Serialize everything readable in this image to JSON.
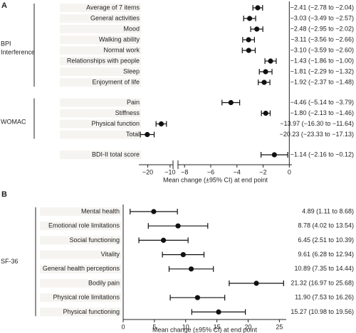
{
  "chart_data": [
    {
      "type": "forest",
      "panel_label": "A",
      "x_label": "Mean change (±95% CI) at end point",
      "xlim": [
        -24,
        0.2
      ],
      "x_break": [
        -8.7,
        -8.5
      ],
      "xticks": [
        {
          "value": -20,
          "label": "−20"
        },
        {
          "value": -10,
          "label": "−10"
        },
        {
          "value": -8,
          "label": "−8"
        },
        {
          "value": -6,
          "label": "−6"
        },
        {
          "value": -4,
          "label": "−4"
        },
        {
          "value": -2,
          "label": "−2"
        },
        0
      ],
      "groups": [
        {
          "name": "BPI\nInterference",
          "categories": [
            "Average of 7 items",
            "General activities",
            "Mood",
            "Walking ability",
            "Normal work",
            "Relationships with people",
            "Sleep",
            "Enjoyment of life"
          ],
          "values": [
            -2.41,
            -3.03,
            -2.48,
            -3.11,
            -3.1,
            -1.43,
            -1.81,
            -1.92
          ],
          "lower": [
            -2.78,
            -3.49,
            -2.95,
            -3.56,
            -3.59,
            -1.86,
            -2.29,
            -2.37
          ],
          "upper": [
            -2.04,
            -2.57,
            -2.02,
            -2.66,
            -2.6,
            -1.0,
            -1.32,
            -1.48
          ],
          "value_labels": [
            "−2.41 (−2.78 to −2.04)",
            "−3.03 (−3.49 to −2.57)",
            "−2.48 (−2.95 to −2.02)",
            "−3.11 (−3.56 to −2.66)",
            "−3.10 (−3.59 to −2.60)",
            "−1.43 (−1.86 to −1.00)",
            "−1.81 (−2.29 to −1.32)",
            "−1.92 (−2.37 to −1.48)"
          ]
        },
        {
          "name": "WOMAC",
          "categories": [
            "Pain",
            "Stiffness",
            "Physical function",
            "Total"
          ],
          "values": [
            -4.46,
            -1.8,
            -13.97,
            -20.23
          ],
          "lower": [
            -5.14,
            -2.13,
            -16.3,
            -23.33
          ],
          "upper": [
            -3.79,
            -1.46,
            -11.64,
            -17.13
          ],
          "value_labels": [
            "−4.46 (−5.14 to −3.79)",
            "−1.80 (−2.13 to −1.46)",
            "−13.97 (−16.30 to −11.64)",
            "−20.23 (−23.33 to −17.13)"
          ]
        },
        {
          "categories": [
            "BDI-II total score"
          ],
          "values": [
            -1.14
          ],
          "lower": [
            -2.16
          ],
          "upper": [
            -0.12
          ],
          "value_labels": [
            "−1.14 (−2.16 to −0.12)"
          ]
        }
      ]
    },
    {
      "type": "forest",
      "panel_label": "B",
      "x_label": "Mean change (±95% CI) at end point",
      "xlim": [
        0,
        26.1
      ],
      "xticks": [
        0,
        5,
        10,
        15,
        20,
        25
      ],
      "groups": [
        {
          "name": "SF-36",
          "categories": [
            "Mental health",
            "Emotional role limitations",
            "Social functioning",
            "Vitality",
            "General health perceptions",
            "Bodily pain",
            "Physical role limitations",
            "Physical functioning"
          ],
          "values": [
            4.89,
            8.78,
            6.45,
            9.61,
            10.89,
            21.32,
            11.9,
            15.27
          ],
          "lower": [
            1.11,
            4.02,
            2.51,
            6.28,
            7.35,
            16.97,
            7.53,
            10.98
          ],
          "upper": [
            8.68,
            13.54,
            10.39,
            12.94,
            14.44,
            25.68,
            16.26,
            19.56
          ],
          "value_labels": [
            "4.89 (1.11 to 8.68)",
            "8.78 (4.02 to 13.54)",
            "6.45 (2.51 to 10.39)",
            "9.61 (6.28 to 12.94)",
            "10.89 (7.35 to 14.44)",
            "21.32 (16.97 to 25.68)",
            "11.90 (7.53 to 16.26)",
            "15.27 (10.98 to 19.56)"
          ]
        }
      ]
    }
  ]
}
